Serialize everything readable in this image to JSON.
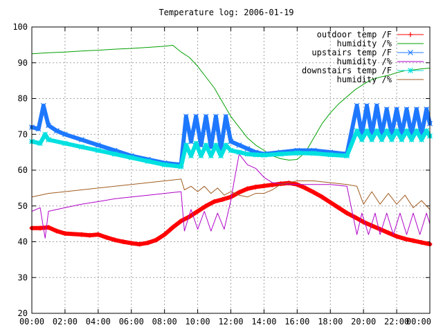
{
  "chart_data": {
    "type": "line",
    "title": "Temperature log: 2006-01-19",
    "xlabel": "",
    "ylabel": "",
    "xlim": [
      0,
      24
    ],
    "ylim": [
      20,
      100
    ],
    "x_ticks": [
      {
        "value": 0,
        "label": "00:00"
      },
      {
        "value": 2,
        "label": "02:00"
      },
      {
        "value": 4,
        "label": "04:00"
      },
      {
        "value": 6,
        "label": "06:00"
      },
      {
        "value": 8,
        "label": "08:00"
      },
      {
        "value": 10,
        "label": "10:00"
      },
      {
        "value": 12,
        "label": "12:00"
      },
      {
        "value": 14,
        "label": "14:00"
      },
      {
        "value": 16,
        "label": "16:00"
      },
      {
        "value": 18,
        "label": "18:00"
      },
      {
        "value": 20,
        "label": "20:00"
      },
      {
        "value": 22,
        "label": "22:00"
      },
      {
        "value": 24,
        "label": "00:00"
      }
    ],
    "y_ticks": [
      20,
      30,
      40,
      50,
      60,
      70,
      80,
      90,
      100
    ],
    "grid": true,
    "legend_position": "top-right",
    "series": [
      {
        "name": "outdoor temp /F",
        "color": "#ff0000",
        "marker": "plus",
        "style": "thick",
        "x": [
          0,
          0.5,
          1.0,
          1.5,
          2.0,
          3.0,
          3.5,
          4.0,
          4.5,
          5.0,
          5.5,
          6.0,
          6.5,
          7.0,
          7.5,
          8.0,
          8.5,
          9.0,
          9.5,
          10.0,
          10.5,
          11.0,
          11.5,
          12.0,
          12.5,
          13.0,
          13.5,
          14.0,
          14.5,
          15.0,
          15.5,
          16.0,
          16.5,
          17.0,
          17.5,
          18.0,
          18.5,
          19.0,
          19.5,
          20.0,
          20.5,
          21.0,
          21.5,
          22.0,
          22.5,
          23.0,
          23.5,
          24.0
        ],
        "y": [
          43.8,
          43.8,
          44.0,
          43.0,
          42.3,
          42.0,
          41.8,
          42.0,
          41.2,
          40.5,
          40.0,
          39.6,
          39.3,
          39.7,
          40.5,
          42.0,
          44.0,
          45.8,
          47.0,
          48.5,
          50.0,
          51.2,
          51.8,
          52.5,
          53.8,
          54.8,
          55.3,
          55.6,
          55.9,
          56.2,
          56.4,
          56.0,
          55.0,
          53.8,
          52.5,
          51.0,
          49.5,
          48.0,
          46.8,
          45.5,
          44.5,
          43.5,
          42.5,
          41.5,
          40.8,
          40.3,
          39.8,
          39.3
        ]
      },
      {
        "name": "humidity /%",
        "color": "#00a000",
        "marker": "none",
        "style": "thin",
        "x": [
          0,
          1.0,
          2.0,
          3.0,
          4.0,
          5.0,
          6.0,
          7.0,
          8.0,
          8.5,
          9.0,
          9.5,
          10.0,
          10.5,
          11.0,
          11.5,
          12.0,
          12.5,
          13.0,
          13.5,
          14.0,
          14.5,
          15.0,
          15.5,
          16.0,
          16.5,
          17.0,
          17.5,
          18.0,
          18.5,
          19.0,
          19.5,
          20.0,
          20.5,
          21.0,
          21.5,
          22.0,
          22.5,
          23.0,
          23.5,
          24.0
        ],
        "y": [
          92.5,
          92.8,
          93.0,
          93.3,
          93.5,
          93.8,
          94.0,
          94.3,
          94.6,
          94.9,
          93.0,
          91.5,
          89.0,
          86.0,
          83.0,
          79.0,
          75.0,
          72.0,
          69.0,
          67.0,
          65.5,
          64.0,
          63.2,
          62.8,
          63.0,
          65.0,
          69.0,
          73.0,
          76.0,
          78.5,
          80.5,
          82.5,
          84.0,
          85.3,
          86.0,
          86.5,
          87.2,
          87.8,
          88.0,
          88.3,
          88.5
        ]
      },
      {
        "name": "upstairs temp /F",
        "color": "#1e78ff",
        "marker": "cross",
        "style": "thick",
        "x": [
          0,
          0.4,
          0.7,
          1.0,
          1.5,
          2.0,
          3.0,
          4.0,
          5.0,
          6.0,
          7.0,
          8.0,
          9.0,
          9.3,
          9.6,
          9.9,
          10.2,
          10.5,
          10.8,
          11.1,
          11.4,
          11.7,
          12.0,
          12.5,
          13.0,
          13.5,
          14.0,
          15.0,
          16.0,
          17.0,
          18.0,
          19.0,
          19.6,
          19.9,
          20.2,
          20.5,
          20.8,
          21.1,
          21.4,
          21.7,
          22.0,
          22.3,
          22.6,
          22.9,
          23.2,
          23.5,
          23.8,
          24.0
        ],
        "y": [
          72.0,
          71.5,
          78.0,
          72.5,
          71.0,
          70.0,
          68.5,
          67.0,
          65.5,
          64.0,
          63.0,
          62.0,
          61.5,
          75.0,
          68.0,
          75.0,
          67.0,
          75.0,
          66.5,
          75.0,
          66.0,
          75.0,
          68.0,
          67.0,
          66.0,
          65.0,
          64.5,
          65.0,
          65.5,
          65.5,
          65.0,
          64.5,
          78.0,
          70.0,
          78.0,
          70.0,
          78.0,
          70.0,
          77.0,
          70.0,
          77.0,
          70.0,
          77.0,
          70.0,
          77.0,
          70.0,
          77.0,
          73.0
        ]
      },
      {
        "name": "humidity /%",
        "color": "#b000c8",
        "marker": "none",
        "style": "thin",
        "x": [
          0,
          0.5,
          0.8,
          1.0,
          2.0,
          3.0,
          4.0,
          5.0,
          6.0,
          7.0,
          8.0,
          9.0,
          9.2,
          9.6,
          10.0,
          10.4,
          10.8,
          11.2,
          11.6,
          12.0,
          12.2,
          12.5,
          13.0,
          13.5,
          14.0,
          14.5,
          15.0,
          16.0,
          17.0,
          18.0,
          19.0,
          19.6,
          19.9,
          20.3,
          20.7,
          21.0,
          21.4,
          21.8,
          22.2,
          22.6,
          23.0,
          23.4,
          23.8,
          24.0
        ],
        "y": [
          48.5,
          49.5,
          41.0,
          48.5,
          49.5,
          50.5,
          51.2,
          52.0,
          52.5,
          53.0,
          53.5,
          54.0,
          43.0,
          49.0,
          43.5,
          48.5,
          43.0,
          48.0,
          43.5,
          51.5,
          57.0,
          64.5,
          61.5,
          60.5,
          58.0,
          56.5,
          56.2,
          56.0,
          56.0,
          56.0,
          55.5,
          42.0,
          48.0,
          42.0,
          48.0,
          42.0,
          48.0,
          42.0,
          48.0,
          42.0,
          48.0,
          42.0,
          48.0,
          45.0
        ]
      },
      {
        "name": "downstairs temp /F",
        "color": "#00e0e0",
        "marker": "star",
        "style": "thick",
        "x": [
          0,
          0.5,
          0.8,
          1.0,
          2.0,
          3.0,
          4.0,
          5.0,
          6.0,
          7.0,
          8.0,
          9.0,
          9.3,
          9.6,
          9.9,
          10.2,
          10.5,
          10.8,
          11.1,
          11.4,
          11.7,
          12.0,
          12.5,
          13.0,
          13.5,
          14.0,
          15.0,
          16.0,
          17.0,
          18.0,
          19.0,
          19.6,
          19.9,
          20.2,
          20.5,
          20.8,
          21.1,
          21.4,
          21.7,
          22.0,
          22.3,
          22.6,
          22.9,
          23.2,
          23.5,
          23.8,
          24.0
        ],
        "y": [
          68.0,
          67.5,
          70.0,
          68.5,
          67.5,
          66.5,
          65.5,
          64.5,
          63.5,
          62.5,
          61.5,
          61.0,
          67.0,
          64.0,
          67.5,
          64.0,
          67.0,
          64.0,
          67.0,
          64.0,
          67.0,
          65.5,
          65.0,
          64.5,
          64.3,
          64.2,
          64.5,
          64.8,
          64.7,
          64.3,
          64.0,
          71.0,
          68.5,
          71.0,
          68.5,
          71.0,
          68.5,
          71.0,
          68.5,
          71.0,
          68.5,
          71.0,
          68.5,
          71.0,
          68.5,
          71.0,
          69.5
        ]
      },
      {
        "name": "humidity /%",
        "color": "#a05a1e",
        "marker": "none",
        "style": "thin",
        "x": [
          0,
          0.5,
          1.0,
          2.0,
          3.0,
          4.0,
          5.0,
          6.0,
          7.0,
          8.0,
          9.0,
          9.2,
          9.6,
          10.0,
          10.4,
          10.8,
          11.2,
          11.6,
          12.0,
          12.5,
          13.0,
          13.5,
          14.0,
          14.5,
          15.0,
          16.0,
          17.0,
          18.0,
          19.0,
          19.6,
          20.0,
          20.5,
          21.0,
          21.5,
          22.0,
          22.5,
          23.0,
          23.5,
          24.0
        ],
        "y": [
          52.5,
          53.0,
          53.5,
          54.0,
          54.5,
          55.0,
          55.5,
          56.0,
          56.5,
          57.0,
          57.5,
          54.5,
          55.5,
          54.0,
          55.5,
          53.5,
          55.0,
          53.0,
          54.0,
          53.0,
          52.5,
          53.5,
          53.5,
          54.5,
          56.0,
          57.0,
          57.0,
          56.5,
          56.0,
          55.5,
          50.5,
          54.0,
          50.5,
          53.5,
          50.5,
          53.0,
          49.5,
          51.5,
          49.0
        ]
      }
    ]
  }
}
